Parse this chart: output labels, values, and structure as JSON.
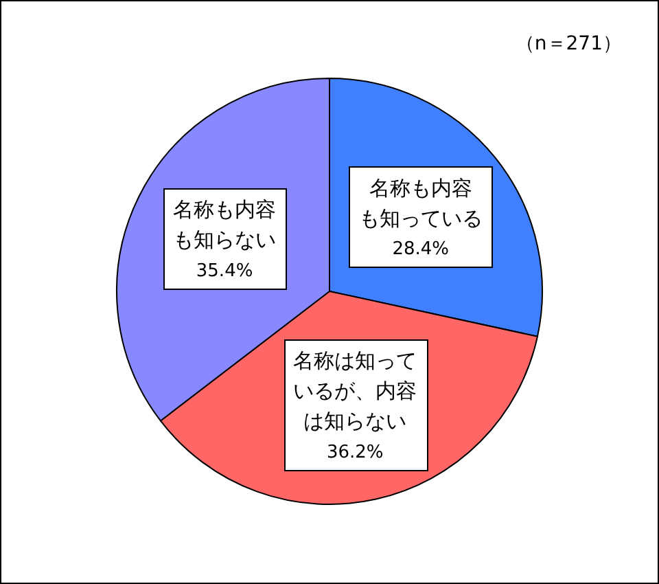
{
  "chart_data": {
    "type": "pie",
    "categories": [
      "名称も内容も知っている",
      "名称は知っているが、内容は知らない",
      "名称も内容も知らない"
    ],
    "values": [
      28.4,
      36.2,
      35.4
    ],
    "colors": [
      "#4080ff",
      "#ff6666",
      "#8888ff"
    ],
    "value_labels": [
      "28.4%",
      "36.2%",
      "35.4%"
    ],
    "annotations": [
      "（n＝271）"
    ]
  }
}
